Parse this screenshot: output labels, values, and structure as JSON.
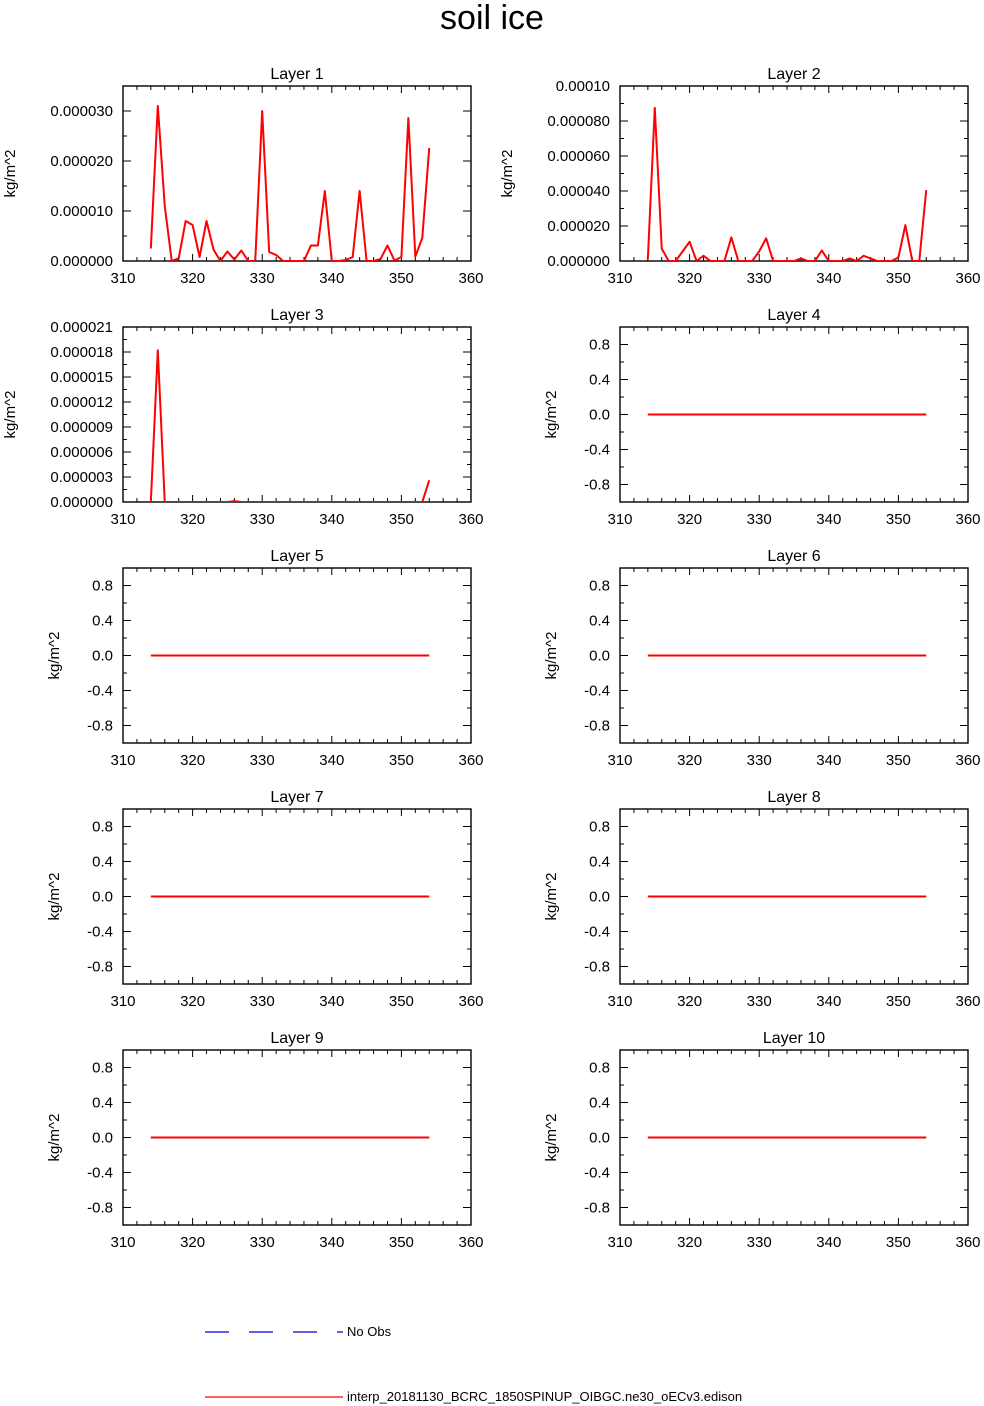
{
  "title": "soil ice",
  "colors": {
    "model": "#ff0000",
    "obs": "#0000cd",
    "axis": "#000000"
  },
  "legend": [
    {
      "label": "No Obs",
      "color": "#0000cd",
      "style": "dashed"
    },
    {
      "label": "interp_20181130_BCRC_1850SPINUP_OIBGC.ne30_oECv3.edison",
      "color": "#ff0000",
      "style": "solid"
    }
  ],
  "chart_data": [
    {
      "type": "line",
      "title": "Layer 1",
      "ylabel": "kg/m^2",
      "xlim": [
        310,
        360
      ],
      "ylim": [
        0,
        3.5e-05
      ],
      "xticks": [
        310,
        320,
        330,
        340,
        350,
        360
      ],
      "yticks": [
        0,
        1e-05,
        2e-05,
        3e-05
      ],
      "ytick_labels": [
        "0.000000",
        "0.000010",
        "0.000020",
        "0.000030"
      ],
      "series": [
        {
          "color": "#ff0000",
          "x": [
            314,
            315,
            316,
            317,
            318,
            319,
            320,
            321,
            322,
            323,
            324,
            325,
            326,
            327,
            328,
            329,
            330,
            331,
            332,
            333,
            334,
            335,
            336,
            337,
            338,
            339,
            340,
            341,
            342,
            343,
            344,
            345,
            346,
            347,
            348,
            349,
            350,
            351,
            352,
            353,
            354
          ],
          "y": [
            2.5e-06,
            3.1e-05,
            1.1e-05,
            0,
            5e-07,
            8e-06,
            7.2e-06,
            8e-07,
            8e-06,
            2.3e-06,
            0,
            1.9e-06,
            3e-07,
            2.1e-06,
            0,
            0,
            3e-05,
            1.8e-06,
            1.2e-06,
            0,
            0,
            0,
            0,
            3.1e-06,
            3.1e-06,
            1.4e-05,
            0,
            0,
            2e-07,
            8e-07,
            1.4e-05,
            0,
            0,
            4e-07,
            3.1e-06,
            1e-07,
            8e-07,
            2.86e-05,
            9e-07,
            4.6e-06,
            2.26e-05
          ]
        }
      ]
    },
    {
      "type": "line",
      "title": "Layer 2",
      "ylabel": "kg/m^2",
      "xlim": [
        310,
        360
      ],
      "ylim": [
        0,
        0.0001
      ],
      "xticks": [
        310,
        320,
        330,
        340,
        350,
        360
      ],
      "yticks": [
        0,
        2e-05,
        4e-05,
        6e-05,
        8e-05,
        0.0001
      ],
      "ytick_labels": [
        "0.000000",
        "0.000020",
        "0.000040",
        "0.000060",
        "0.000080",
        "0.00010"
      ],
      "series": [
        {
          "color": "#ff0000",
          "x": [
            314,
            315,
            316,
            317,
            318,
            319,
            320,
            321,
            322,
            323,
            324,
            325,
            326,
            327,
            328,
            329,
            330,
            331,
            332,
            333,
            334,
            335,
            336,
            337,
            338,
            339,
            340,
            341,
            342,
            343,
            344,
            345,
            346,
            347,
            348,
            349,
            350,
            351,
            352,
            353,
            354
          ],
          "y": [
            1e-06,
            8.75e-05,
            7e-06,
            0,
            0,
            5.5e-06,
            1.1e-05,
            0,
            3e-06,
            0,
            0,
            0,
            1.35e-05,
            0,
            0,
            0,
            5.5e-06,
            1.3e-05,
            0,
            0,
            0,
            0,
            1.5e-06,
            0,
            0,
            6e-06,
            0,
            0,
            0,
            1.5e-06,
            0,
            3e-06,
            1.5e-06,
            0,
            0,
            0,
            2e-06,
            2.05e-05,
            0,
            0,
            4.05e-05
          ]
        }
      ]
    },
    {
      "type": "line",
      "title": "Layer 3",
      "ylabel": "kg/m^2",
      "xlim": [
        310,
        360
      ],
      "ylim": [
        0,
        2.1e-05
      ],
      "xticks": [
        310,
        320,
        330,
        340,
        350,
        360
      ],
      "yticks": [
        0,
        3e-06,
        6e-06,
        9e-06,
        1.2e-05,
        1.5e-05,
        1.8e-05,
        2.1e-05
      ],
      "ytick_labels": [
        "0.000000",
        "0.000003",
        "0.000006",
        "0.000009",
        "0.000012",
        "0.000015",
        "0.000018",
        "0.000021"
      ],
      "series": [
        {
          "color": "#ff0000",
          "x": [
            314,
            315,
            316,
            317,
            318,
            319,
            320,
            321,
            322,
            323,
            324,
            325,
            326,
            327,
            328,
            329,
            330,
            331,
            332,
            333,
            334,
            335,
            336,
            337,
            338,
            339,
            340,
            341,
            342,
            343,
            344,
            345,
            346,
            347,
            348,
            349,
            350,
            351,
            352,
            353,
            354
          ],
          "y": [
            0,
            1.82e-05,
            0,
            0,
            0,
            0,
            0,
            0,
            0,
            0,
            0,
            0,
            1e-07,
            0,
            0,
            0,
            0,
            0,
            0,
            0,
            0,
            0,
            0,
            0,
            0,
            0,
            0,
            0,
            0,
            0,
            0,
            0,
            0,
            0,
            0,
            0,
            0,
            0,
            0,
            0,
            2.6e-06
          ]
        }
      ]
    },
    {
      "type": "line",
      "title": "Layer 4",
      "ylabel": "kg/m^2",
      "xlim": [
        310,
        360
      ],
      "ylim": [
        -1,
        1
      ],
      "xticks": [
        310,
        320,
        330,
        340,
        350,
        360
      ],
      "yticks": [
        -0.8,
        -0.4,
        0,
        0.4,
        0.8
      ],
      "ytick_labels": [
        "-0.8",
        "-0.4",
        "0.0",
        "0.4",
        "0.8"
      ],
      "series": [
        {
          "color": "#ff0000",
          "x": [
            314,
            354
          ],
          "y": [
            0,
            0
          ]
        }
      ]
    },
    {
      "type": "line",
      "title": "Layer 5",
      "ylabel": "kg/m^2",
      "xlim": [
        310,
        360
      ],
      "ylim": [
        -1,
        1
      ],
      "xticks": [
        310,
        320,
        330,
        340,
        350,
        360
      ],
      "yticks": [
        -0.8,
        -0.4,
        0,
        0.4,
        0.8
      ],
      "ytick_labels": [
        "-0.8",
        "-0.4",
        "0.0",
        "0.4",
        "0.8"
      ],
      "series": [
        {
          "color": "#ff0000",
          "x": [
            314,
            354
          ],
          "y": [
            0,
            0
          ]
        }
      ]
    },
    {
      "type": "line",
      "title": "Layer 6",
      "ylabel": "kg/m^2",
      "xlim": [
        310,
        360
      ],
      "ylim": [
        -1,
        1
      ],
      "xticks": [
        310,
        320,
        330,
        340,
        350,
        360
      ],
      "yticks": [
        -0.8,
        -0.4,
        0,
        0.4,
        0.8
      ],
      "ytick_labels": [
        "-0.8",
        "-0.4",
        "0.0",
        "0.4",
        "0.8"
      ],
      "series": [
        {
          "color": "#ff0000",
          "x": [
            314,
            354
          ],
          "y": [
            0,
            0
          ]
        }
      ]
    },
    {
      "type": "line",
      "title": "Layer 7",
      "ylabel": "kg/m^2",
      "xlim": [
        310,
        360
      ],
      "ylim": [
        -1,
        1
      ],
      "xticks": [
        310,
        320,
        330,
        340,
        350,
        360
      ],
      "yticks": [
        -0.8,
        -0.4,
        0,
        0.4,
        0.8
      ],
      "ytick_labels": [
        "-0.8",
        "-0.4",
        "0.0",
        "0.4",
        "0.8"
      ],
      "series": [
        {
          "color": "#ff0000",
          "x": [
            314,
            354
          ],
          "y": [
            0,
            0
          ]
        }
      ]
    },
    {
      "type": "line",
      "title": "Layer 8",
      "ylabel": "kg/m^2",
      "xlim": [
        310,
        360
      ],
      "ylim": [
        -1,
        1
      ],
      "xticks": [
        310,
        320,
        330,
        340,
        350,
        360
      ],
      "yticks": [
        -0.8,
        -0.4,
        0,
        0.4,
        0.8
      ],
      "ytick_labels": [
        "-0.8",
        "-0.4",
        "0.0",
        "0.4",
        "0.8"
      ],
      "series": [
        {
          "color": "#ff0000",
          "x": [
            314,
            354
          ],
          "y": [
            0,
            0
          ]
        }
      ]
    },
    {
      "type": "line",
      "title": "Layer 9",
      "ylabel": "kg/m^2",
      "xlim": [
        310,
        360
      ],
      "ylim": [
        -1,
        1
      ],
      "xticks": [
        310,
        320,
        330,
        340,
        350,
        360
      ],
      "yticks": [
        -0.8,
        -0.4,
        0,
        0.4,
        0.8
      ],
      "ytick_labels": [
        "-0.8",
        "-0.4",
        "0.0",
        "0.4",
        "0.8"
      ],
      "series": [
        {
          "color": "#ff0000",
          "x": [
            314,
            354
          ],
          "y": [
            0,
            0
          ]
        }
      ]
    },
    {
      "type": "line",
      "title": "Layer 10",
      "ylabel": "kg/m^2",
      "xlim": [
        310,
        360
      ],
      "ylim": [
        -1,
        1
      ],
      "xticks": [
        310,
        320,
        330,
        340,
        350,
        360
      ],
      "yticks": [
        -0.8,
        -0.4,
        0,
        0.4,
        0.8
      ],
      "ytick_labels": [
        "-0.8",
        "-0.4",
        "0.0",
        "0.4",
        "0.8"
      ],
      "series": [
        {
          "color": "#ff0000",
          "x": [
            314,
            354
          ],
          "y": [
            0,
            0
          ]
        }
      ]
    }
  ]
}
